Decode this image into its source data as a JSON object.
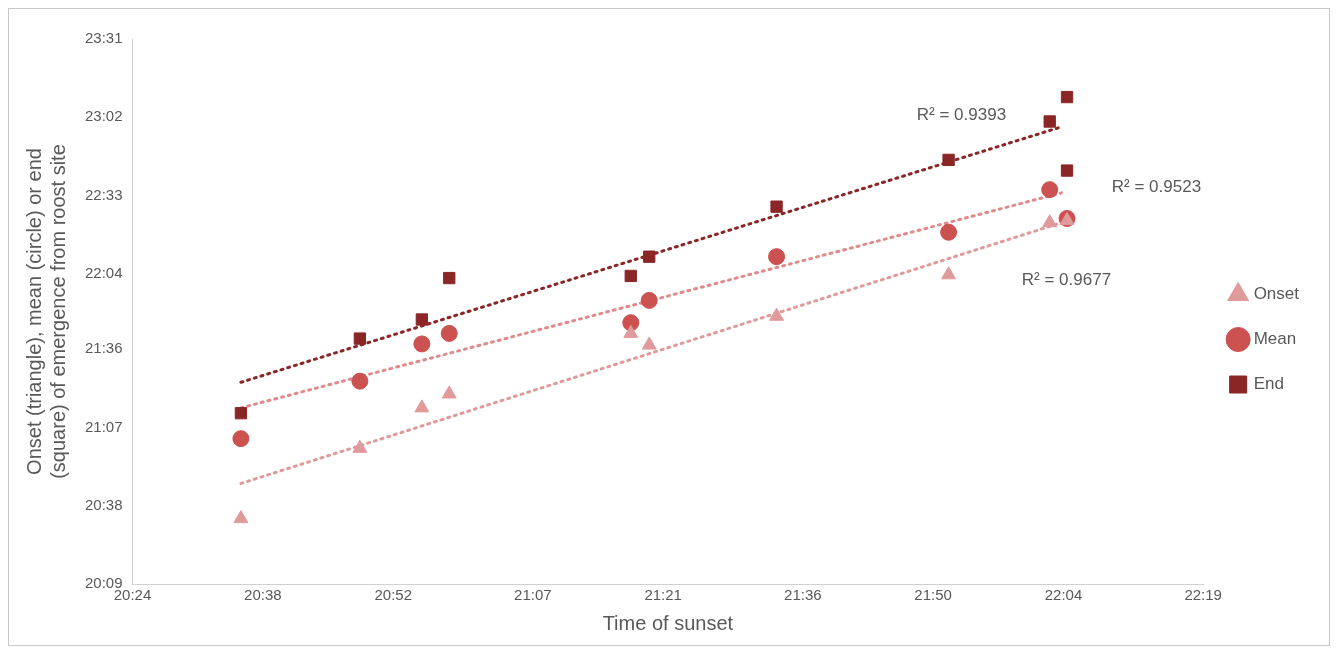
{
  "chart_data": {
    "type": "scatter",
    "xlabel": "Time of sunset",
    "ylabel": "Onset (triangle), mean (circle) or end (square) of emergence from roost site",
    "xlim": [
      20.4,
      22.3167
    ],
    "xticks": [
      {
        "value": 20.4,
        "label": "20:24"
      },
      {
        "value": 20.6333,
        "label": "20:38"
      },
      {
        "value": 20.8667,
        "label": "20:52"
      },
      {
        "value": 21.1167,
        "label": "21:07"
      },
      {
        "value": 21.35,
        "label": "21:21"
      },
      {
        "value": 21.6,
        "label": "21:36"
      },
      {
        "value": 21.8333,
        "label": "21:50"
      },
      {
        "value": 22.0667,
        "label": "22:04"
      },
      {
        "value": 22.3167,
        "label": "22:19"
      }
    ],
    "ylim": [
      20.15,
      23.5167
    ],
    "yticks": [
      {
        "value": 20.15,
        "label": "20:09"
      },
      {
        "value": 20.6333,
        "label": "20:38"
      },
      {
        "value": 21.1167,
        "label": "21:07"
      },
      {
        "value": 21.6,
        "label": "21:36"
      },
      {
        "value": 22.0667,
        "label": "22:04"
      },
      {
        "value": 22.55,
        "label": "22:33"
      },
      {
        "value": 23.0333,
        "label": "23:02"
      },
      {
        "value": 23.5167,
        "label": "23:31"
      }
    ],
    "grid": false,
    "legend": "right",
    "series": [
      {
        "name": "Onset",
        "color": "#e09a9b",
        "marker": "triangle",
        "x": [
          20.594,
          20.807,
          20.918,
          20.967,
          21.292,
          21.325,
          21.553,
          21.861,
          22.042,
          22.073
        ],
        "values": [
          20.554,
          20.988,
          21.238,
          21.324,
          21.698,
          21.626,
          21.804,
          22.06,
          22.382,
          22.395
        ]
      },
      {
        "name": "Mean",
        "color": "#cc5151",
        "marker": "circle",
        "x": [
          20.594,
          20.807,
          20.918,
          20.967,
          21.292,
          21.325,
          21.553,
          21.861,
          22.042,
          22.073
        ],
        "values": [
          21.048,
          21.403,
          21.633,
          21.698,
          21.764,
          21.902,
          22.172,
          22.323,
          22.586,
          22.408
        ]
      },
      {
        "name": "End",
        "color": "#8b2626",
        "marker": "square",
        "x": [
          20.594,
          20.807,
          20.918,
          20.967,
          21.292,
          21.325,
          21.553,
          21.861,
          22.042,
          22.073,
          22.073
        ],
        "values": [
          21.205,
          21.666,
          21.784,
          22.04,
          22.053,
          22.172,
          22.481,
          22.77,
          23.007,
          23.158,
          22.704
        ]
      },
      {
        "type": "line",
        "color": "#8b2626",
        "marker": "none",
        "line_style": "dotted",
        "x": [
          20.594,
          22.063
        ],
        "values": [
          21.396,
          22.974
        ]
      },
      {
        "type": "line",
        "color": "#e08a8a",
        "marker": "none",
        "line_style": "dotted",
        "x": [
          20.594,
          22.063
        ],
        "values": [
          21.238,
          22.566
        ]
      },
      {
        "type": "line",
        "color": "#e09a9b",
        "marker": "none",
        "line_style": "dotted",
        "x": [
          20.594,
          22.063
        ],
        "values": [
          20.771,
          22.382
        ]
      }
    ],
    "annotations": [
      "R² = 0.9393",
      "R² = 0.9523",
      "R² = 0.9677"
    ]
  }
}
